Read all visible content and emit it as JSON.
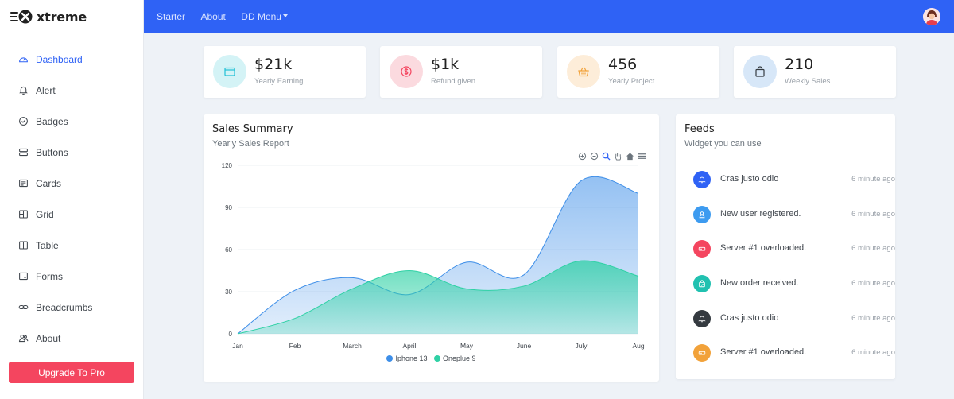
{
  "brand": {
    "name": "xtreme"
  },
  "sidebar": {
    "items": [
      {
        "label": "Dashboard",
        "icon": "speedometer-icon",
        "active": true
      },
      {
        "label": "Alert",
        "icon": "bell-icon"
      },
      {
        "label": "Badges",
        "icon": "patch-check-icon"
      },
      {
        "label": "Buttons",
        "icon": "hdd-stack-icon"
      },
      {
        "label": "Cards",
        "icon": "card-text-icon"
      },
      {
        "label": "Grid",
        "icon": "columns-icon"
      },
      {
        "label": "Table",
        "icon": "layout-split-icon"
      },
      {
        "label": "Forms",
        "icon": "textarea-icon"
      },
      {
        "label": "Breadcrumbs",
        "icon": "link-icon"
      },
      {
        "label": "About",
        "icon": "people-icon"
      }
    ],
    "upgrade_label": "Upgrade To Pro"
  },
  "topbar": {
    "links": [
      "Starter",
      "About",
      "DD Menu"
    ]
  },
  "stats": [
    {
      "value": "$21k",
      "label": "Yearly Earning",
      "color": "#21c1d6",
      "bg": "#d4f3f6",
      "icon": "wallet-icon"
    },
    {
      "value": "$1k",
      "label": "Refund given",
      "color": "#f4455f",
      "bg": "#fbdadf",
      "icon": "coin-icon"
    },
    {
      "value": "456",
      "label": "Yearly Project",
      "color": "#f2a23a",
      "bg": "#fdedd9",
      "icon": "basket-icon"
    },
    {
      "value": "210",
      "label": "Weekly Sales",
      "color": "#2f62f5",
      "bg": "#d7e7f8",
      "icon": "bag-icon"
    }
  ],
  "sales": {
    "title": "Sales Summary",
    "subtitle": "Yearly Sales Report"
  },
  "chart_data": {
    "type": "area",
    "categories": [
      "Jan",
      "Feb",
      "March",
      "April",
      "May",
      "June",
      "July",
      "Aug"
    ],
    "yticks": [
      0,
      30,
      60,
      90,
      120
    ],
    "ylim": [
      0,
      120
    ],
    "series": [
      {
        "name": "Iphone 13",
        "color": "#3d8ee8",
        "values": [
          0,
          31,
          40,
          28,
          51,
          42,
          109,
          100
        ]
      },
      {
        "name": "Oneplue 9",
        "color": "#2fd1a5",
        "values": [
          0,
          11,
          32,
          45,
          32,
          34,
          52,
          41
        ]
      }
    ],
    "legend": "bottom",
    "grid": true
  },
  "feeds": {
    "title": "Feeds",
    "subtitle": "Widget you can use",
    "items": [
      {
        "text": "Cras justo odio",
        "time": "6 minute ago",
        "color": "#2f62f5",
        "icon": "bell-icon"
      },
      {
        "text": "New user registered.",
        "time": "6 minute ago",
        "color": "#3d9bf0",
        "icon": "person-icon"
      },
      {
        "text": "Server #1 overloaded.",
        "time": "6 minute ago",
        "color": "#f4455f",
        "icon": "hdd-icon"
      },
      {
        "text": "New order received.",
        "time": "6 minute ago",
        "color": "#21c1b0",
        "icon": "bag-check-icon"
      },
      {
        "text": "Cras justo odio",
        "time": "6 minute ago",
        "color": "#343a40",
        "icon": "bell-icon"
      },
      {
        "text": "Server #1 overloaded.",
        "time": "6 minute ago",
        "color": "#f2a23a",
        "icon": "hdd-icon"
      }
    ]
  }
}
